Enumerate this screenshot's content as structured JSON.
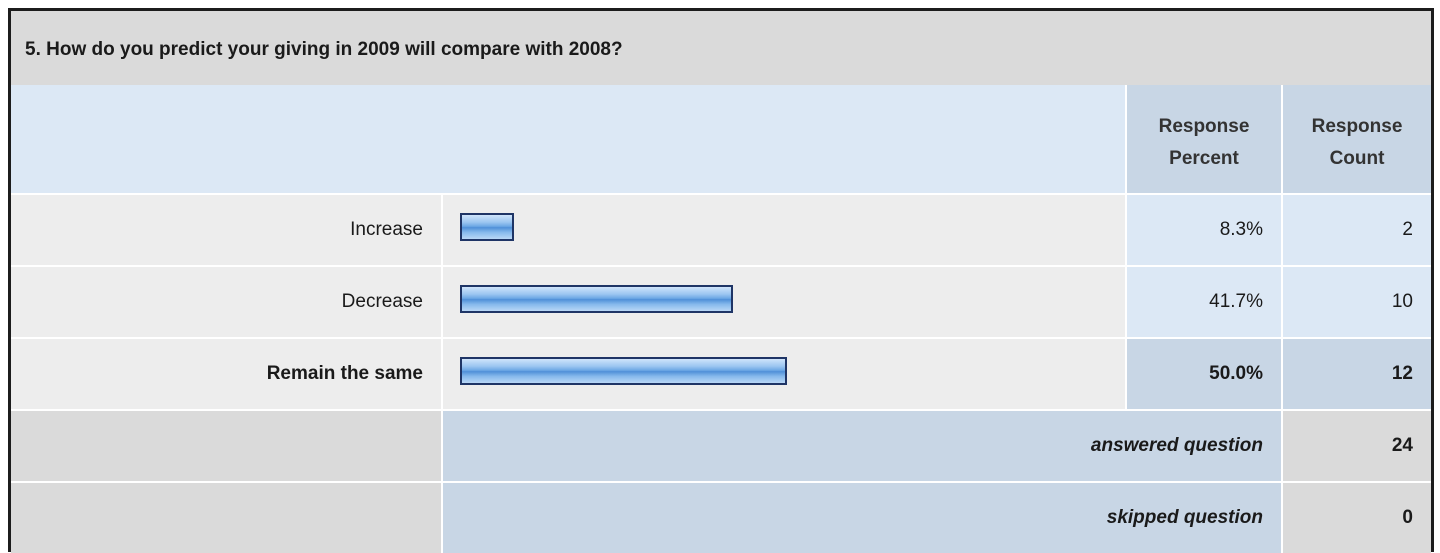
{
  "question": {
    "title": "5. How do you predict your giving in 2009 will compare with 2008?"
  },
  "columns": {
    "percent": "Response\nPercent",
    "count": "Response\nCount"
  },
  "chart_data": {
    "type": "bar",
    "categories": [
      "Increase",
      "Decrease",
      "Remain the same"
    ],
    "values": [
      8.3,
      41.7,
      50.0
    ],
    "percent_labels": [
      "8.3%",
      "41.7%",
      "50.0%"
    ],
    "counts": [
      "2",
      "10",
      "12"
    ],
    "highlighted": "Remain the same",
    "xlim": [
      0,
      100
    ],
    "bar_color": "#6aa6e4"
  },
  "summary": {
    "answered_label": "answered question",
    "answered_value": "24",
    "skipped_label": "skipped question",
    "skipped_value": "0"
  },
  "colors": {
    "header_bg": "#dadada",
    "column_header_bg": "#c8d6e5",
    "row_bg": "#ededed",
    "value_bg": "#dce8f5"
  }
}
